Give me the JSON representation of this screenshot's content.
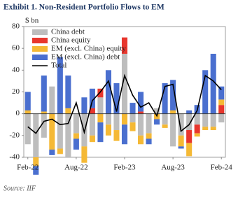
{
  "chart_data": {
    "type": "bar",
    "title": "Exhibit 1. Non-Resident Portfolio Flows to EM",
    "y_label": "$ bn",
    "source": "Source: IIF",
    "categories": [
      "Feb-22",
      null,
      null,
      null,
      null,
      null,
      "Aug-22",
      null,
      null,
      null,
      null,
      null,
      "Feb-23",
      null,
      null,
      null,
      null,
      null,
      "Aug-23",
      null,
      null,
      null,
      null,
      null,
      "Feb-24"
    ],
    "ylim": [
      -40,
      80
    ],
    "yticks": [
      -40,
      -20,
      0,
      20,
      40,
      60,
      80
    ],
    "series": [
      {
        "name": "China debt",
        "type": "bar",
        "color": "#bdbdbd",
        "values": [
          -28,
          -40,
          -22,
          25,
          -32,
          -40,
          -18,
          -30,
          -20,
          15,
          -10,
          -15,
          55,
          -8,
          -20,
          -18,
          5,
          -10,
          -30,
          -20,
          -15,
          -10,
          -12,
          -12,
          -8
        ]
      },
      {
        "name": "China equity",
        "type": "bar",
        "color": "#e8362d",
        "values": [
          0,
          0,
          0,
          0,
          0,
          0,
          0,
          0,
          5,
          8,
          0,
          0,
          15,
          0,
          2,
          0,
          0,
          0,
          0,
          0,
          -12,
          -8,
          0,
          0,
          8
        ]
      },
      {
        "name": "EM (excl. China) equity",
        "type": "bar",
        "color": "#f5b935",
        "values": [
          3,
          -8,
          2,
          -33,
          -5,
          5,
          -5,
          -15,
          -6,
          -8,
          -10,
          -10,
          -10,
          -8,
          -8,
          -5,
          -5,
          -3,
          3,
          -10,
          -12,
          -3,
          -3,
          -3,
          5
        ]
      },
      {
        "name": "EM (excl. China) debt",
        "type": "bar",
        "color": "#4a6fcf",
        "values": [
          17,
          -8,
          33,
          -5,
          52,
          30,
          -10,
          15,
          18,
          -18,
          40,
          28,
          -18,
          10,
          18,
          -5,
          -5,
          28,
          28,
          -2,
          3,
          8,
          40,
          55,
          12
        ]
      },
      {
        "name": "Total",
        "type": "line",
        "color": "#000000",
        "values": [
          -12,
          -18,
          -7,
          -5,
          -10,
          -9,
          10,
          -17,
          12,
          20,
          30,
          2,
          35,
          17,
          6,
          10,
          -2,
          25,
          27,
          -16,
          -10,
          3,
          35,
          30,
          22
        ]
      }
    ]
  }
}
